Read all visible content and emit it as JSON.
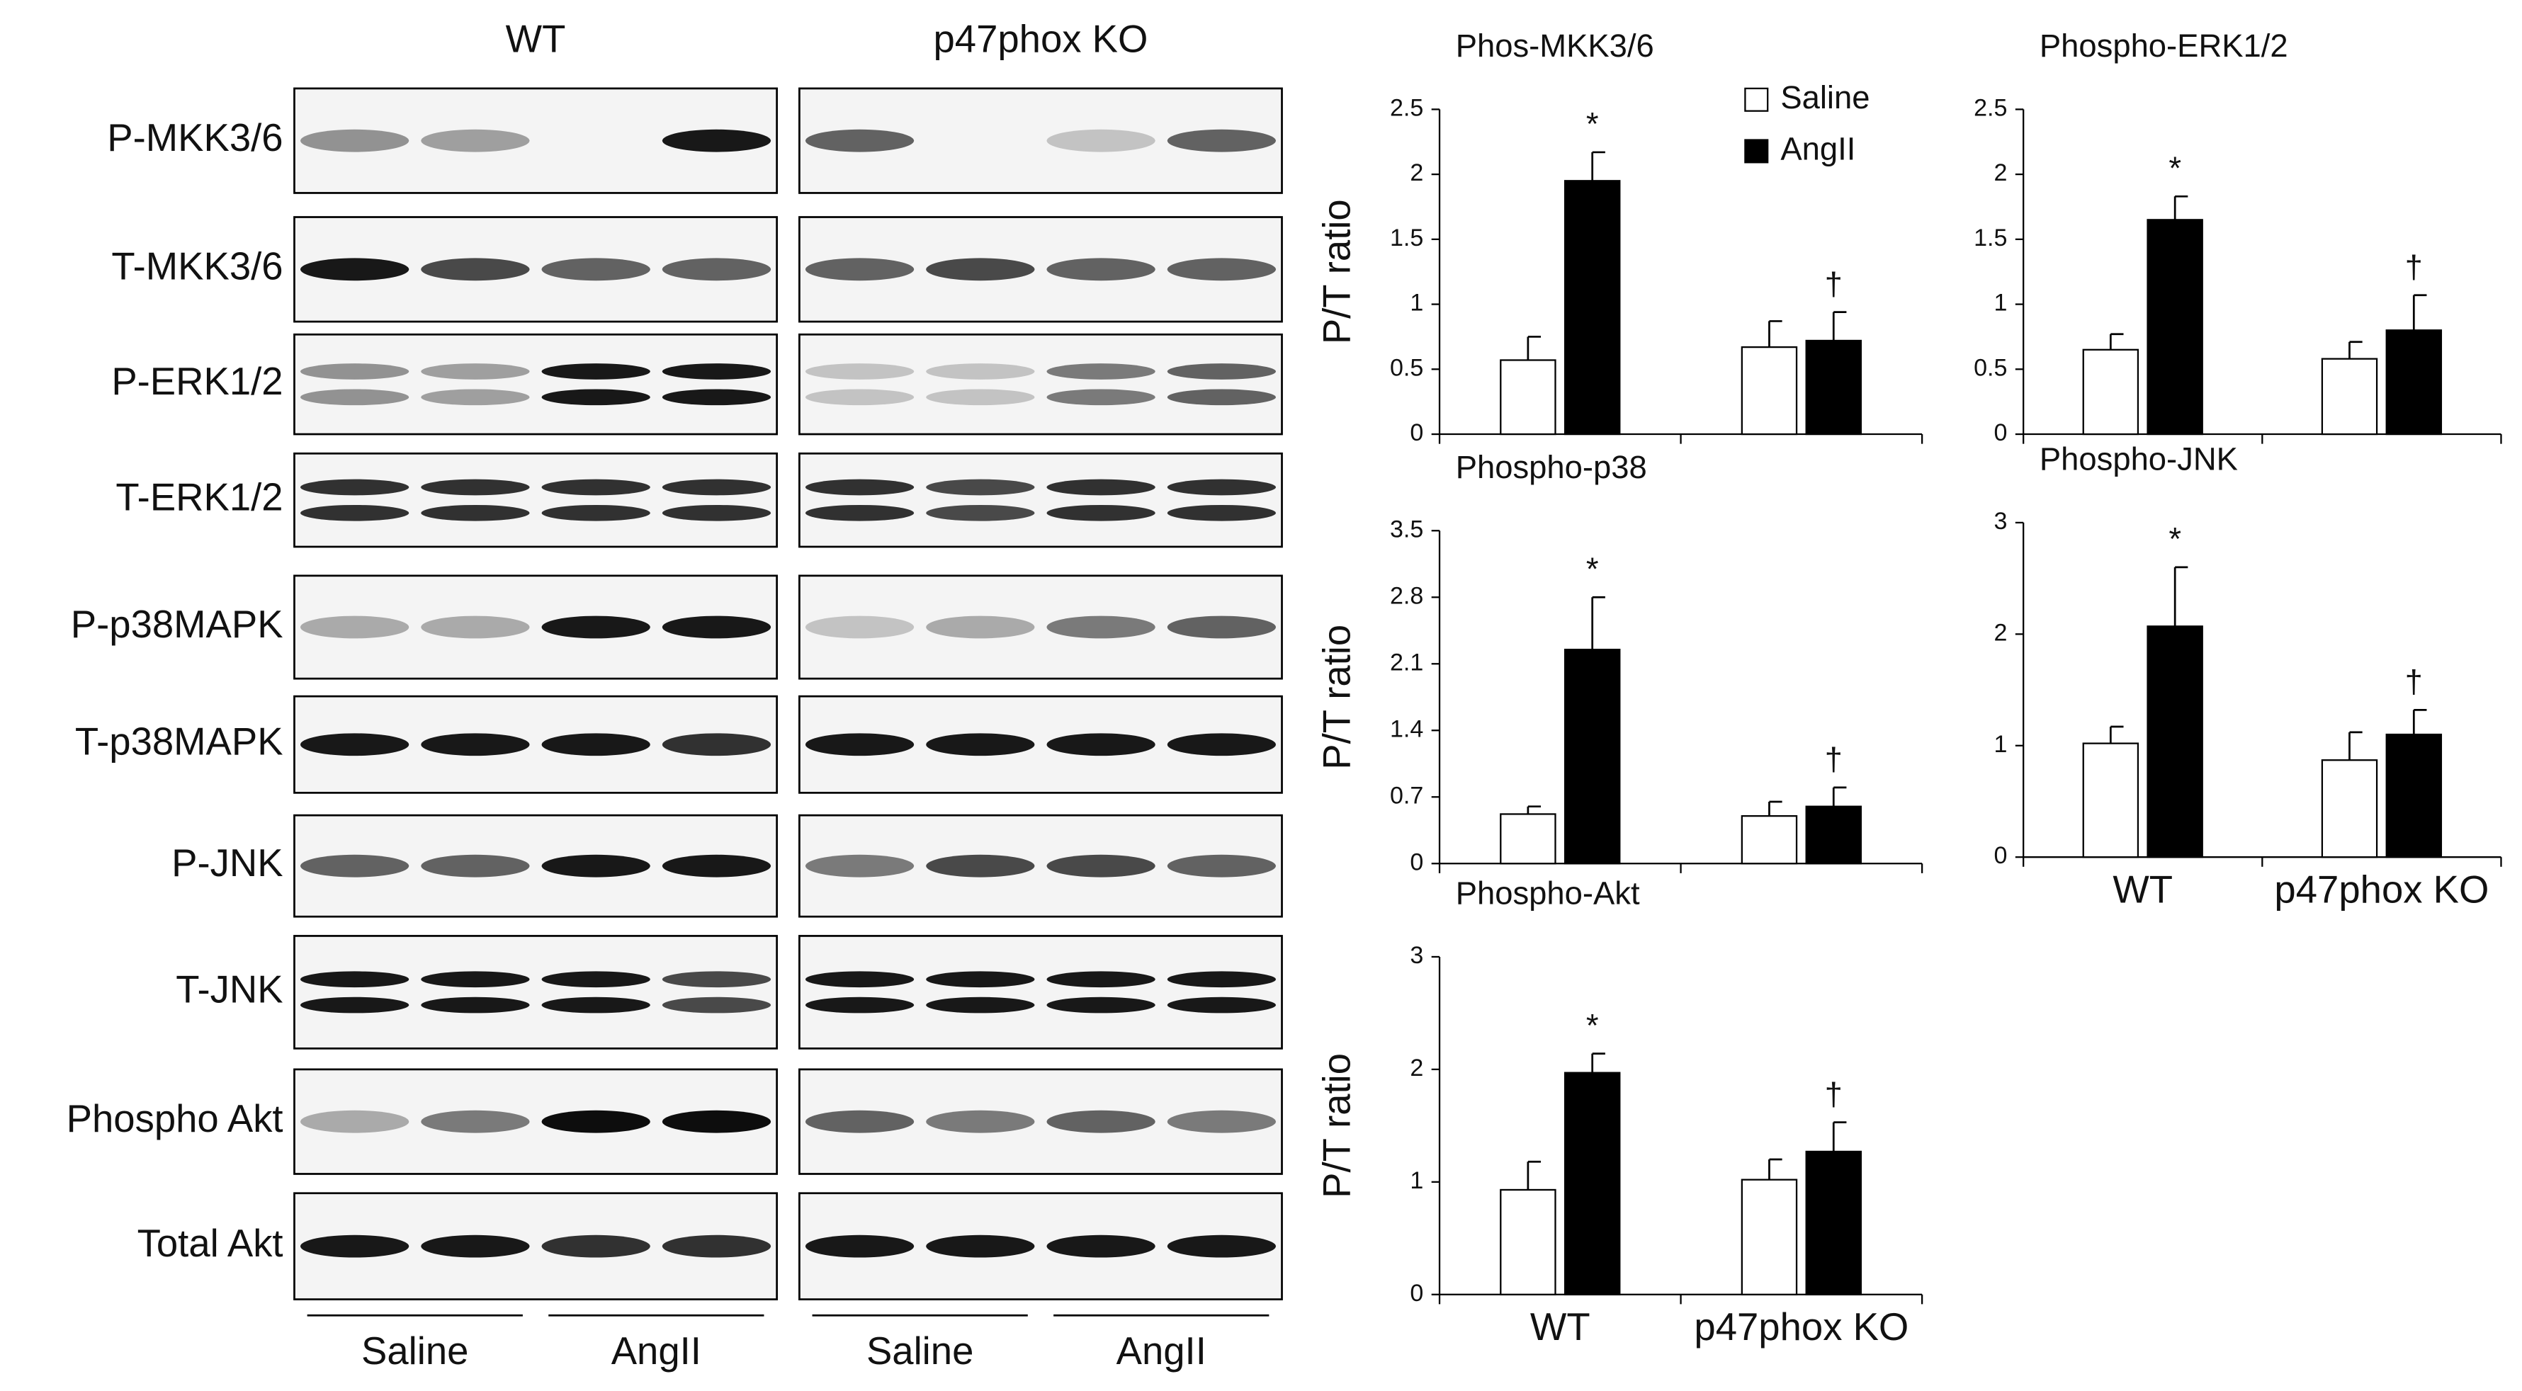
{
  "blot_panel": {
    "groups": [
      "WT",
      "p47phox KO"
    ],
    "rows": [
      "P-MKK3/6",
      "T-MKK3/6",
      "P-ERK1/2",
      "T-ERK1/2",
      "P-p38MAPK",
      "T-p38MAPK",
      "P-JNK",
      "T-JNK",
      "Phospho Akt",
      "Total Akt"
    ],
    "treatments": [
      "Saline",
      "AngII",
      "Saline",
      "AngII"
    ]
  },
  "chart_data": [
    {
      "type": "bar",
      "title": "Phos-MKK3/6",
      "y_label": "P/T ratio",
      "categories": [
        "WT",
        "p47phox KO"
      ],
      "show_categories": false,
      "legend": "upper right",
      "ylim": [
        0,
        2.5
      ],
      "yticks": [
        0,
        0.5,
        1,
        1.5,
        2,
        2.5
      ],
      "series": [
        {
          "name": "Saline",
          "color": "#ffffff",
          "values": [
            0.57,
            0.67
          ],
          "errors": [
            0.18,
            0.2
          ]
        },
        {
          "name": "AngII",
          "color": "#000000",
          "values": [
            1.95,
            0.72
          ],
          "errors": [
            0.22,
            0.22
          ],
          "annotations": [
            "*",
            "†"
          ]
        }
      ]
    },
    {
      "type": "bar",
      "title": "Phospho-ERK1/2",
      "categories": [
        "WT",
        "p47phox KO"
      ],
      "show_categories": false,
      "ylim": [
        0,
        2.5
      ],
      "yticks": [
        0,
        0.5,
        1,
        1.5,
        2,
        2.5
      ],
      "series": [
        {
          "name": "Saline",
          "color": "#ffffff",
          "values": [
            0.65,
            0.58
          ],
          "errors": [
            0.12,
            0.13
          ]
        },
        {
          "name": "AngII",
          "color": "#000000",
          "values": [
            1.65,
            0.8
          ],
          "errors": [
            0.18,
            0.27
          ],
          "annotations": [
            "*",
            "†"
          ]
        }
      ]
    },
    {
      "type": "bar",
      "title": "Phospho-p38",
      "y_label": "P/T ratio",
      "categories": [
        "WT",
        "p47phox KO"
      ],
      "show_categories": false,
      "ylim": [
        0,
        3.5
      ],
      "yticks": [
        0,
        0.7,
        1.4,
        2.1,
        2.8,
        3.5
      ],
      "series": [
        {
          "name": "Saline",
          "color": "#ffffff",
          "values": [
            0.52,
            0.5
          ],
          "errors": [
            0.08,
            0.15
          ]
        },
        {
          "name": "AngII",
          "color": "#000000",
          "values": [
            2.25,
            0.6
          ],
          "errors": [
            0.55,
            0.2
          ],
          "annotations": [
            "*",
            "†"
          ]
        }
      ]
    },
    {
      "type": "bar",
      "title": "Phospho-JNK",
      "categories": [
        "WT",
        "p47phox KO"
      ],
      "show_categories": true,
      "ylim": [
        0,
        3
      ],
      "yticks": [
        0,
        1,
        2,
        3
      ],
      "series": [
        {
          "name": "Saline",
          "color": "#ffffff",
          "values": [
            1.02,
            0.87
          ],
          "errors": [
            0.15,
            0.25
          ]
        },
        {
          "name": "AngII",
          "color": "#000000",
          "values": [
            2.07,
            1.1
          ],
          "errors": [
            0.53,
            0.22
          ],
          "annotations": [
            "*",
            "†"
          ]
        }
      ]
    },
    {
      "type": "bar",
      "title": "Phospho-Akt",
      "y_label": "P/T ratio",
      "categories": [
        "WT",
        "p47phox KO"
      ],
      "show_categories": true,
      "ylim": [
        0,
        3
      ],
      "yticks": [
        0,
        1,
        2,
        3
      ],
      "series": [
        {
          "name": "Saline",
          "color": "#ffffff",
          "values": [
            0.93,
            1.02
          ],
          "errors": [
            0.25,
            0.18
          ]
        },
        {
          "name": "AngII",
          "color": "#000000",
          "values": [
            1.97,
            1.27
          ],
          "errors": [
            0.17,
            0.26
          ],
          "annotations": [
            "*",
            "†"
          ]
        }
      ]
    }
  ]
}
